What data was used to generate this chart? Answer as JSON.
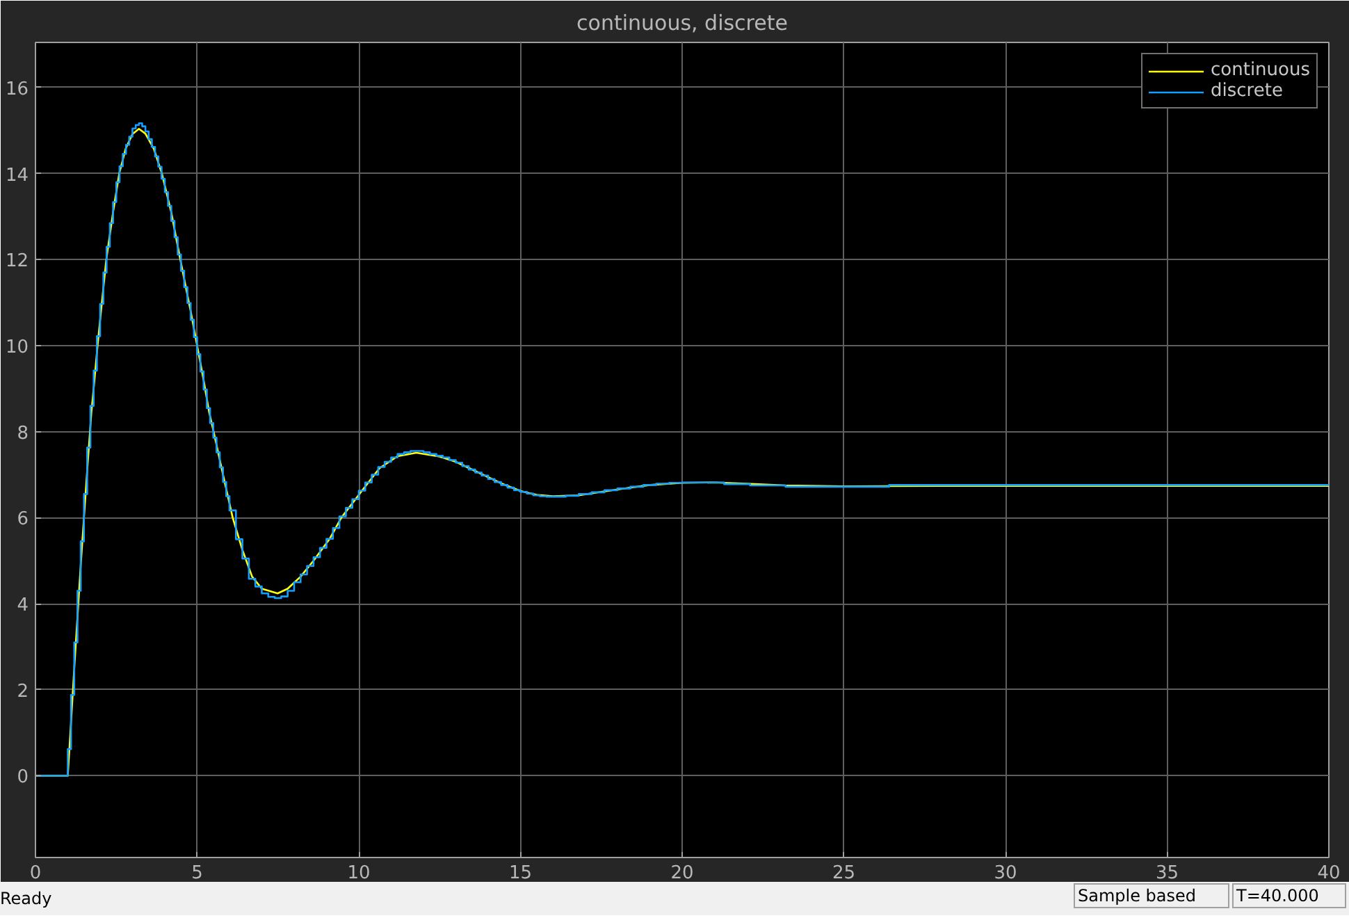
{
  "chart_data": {
    "type": "line",
    "title": "continuous, discrete",
    "xlim": [
      0,
      40
    ],
    "xticks": [
      0,
      5,
      10,
      15,
      20,
      25,
      30,
      35,
      40
    ],
    "ylim": [
      -1.9,
      17.05
    ],
    "yticks": [
      0,
      2,
      4,
      6,
      8,
      10,
      12,
      14,
      16
    ],
    "grid": true,
    "legend": "top right",
    "series": [
      {
        "name": "continuous",
        "color": "#ffff11",
        "x": [
          0,
          1.0,
          1.2,
          1.4,
          1.6,
          1.73,
          1.8,
          1.92,
          2.0,
          2.19,
          2.4,
          2.59,
          2.79,
          3.0,
          3.2,
          3.4,
          3.66,
          3.91,
          4.2,
          4.48,
          4.8,
          5.0,
          5.2,
          5.37,
          5.51,
          5.8,
          6.1,
          6.4,
          6.7,
          7.0,
          7.49,
          7.8,
          8.2,
          8.6,
          9.1,
          9.46,
          10.07,
          10.64,
          11.2,
          11.78,
          12.5,
          13.0,
          13.7,
          14.4,
          15.0,
          15.5,
          16.0,
          16.8,
          17.5,
          18.3,
          19.0,
          20.0,
          21.0,
          22.0,
          23.2,
          25.0,
          28.0,
          40.0
        ],
        "values": [
          0,
          0,
          2.5,
          4.9,
          7.1,
          8.46,
          9.0,
          10.0,
          10.6,
          12.0,
          13.1,
          14.0,
          14.58,
          14.92,
          15.04,
          14.93,
          14.58,
          14.0,
          13.1,
          12.0,
          10.8,
          10.0,
          9.2,
          8.46,
          8.0,
          7.0,
          6.0,
          5.25,
          4.63,
          4.35,
          4.24,
          4.35,
          4.63,
          5.0,
          5.51,
          6.0,
          6.6,
          7.15,
          7.43,
          7.51,
          7.42,
          7.3,
          7.05,
          6.8,
          6.62,
          6.53,
          6.5,
          6.52,
          6.6,
          6.69,
          6.76,
          6.81,
          6.82,
          6.79,
          6.75,
          6.73,
          6.74,
          6.74
        ]
      },
      {
        "name": "discrete",
        "color": "#129fff",
        "type": "step",
        "x": [
          0,
          1.0,
          1.1,
          1.2,
          1.3,
          1.4,
          1.5,
          1.6,
          1.7,
          1.8,
          1.9,
          2.0,
          2.1,
          2.2,
          2.3,
          2.4,
          2.5,
          2.6,
          2.7,
          2.8,
          2.9,
          3.0,
          3.1,
          3.2,
          3.3,
          3.4,
          3.5,
          3.6,
          3.7,
          3.8,
          3.9,
          4.0,
          4.1,
          4.2,
          4.3,
          4.4,
          4.5,
          4.6,
          4.7,
          4.8,
          4.9,
          5.0,
          5.1,
          5.2,
          5.3,
          5.4,
          5.5,
          5.6,
          5.7,
          5.8,
          5.9,
          6.0,
          6.2,
          6.4,
          6.6,
          6.8,
          7.0,
          7.2,
          7.4,
          7.6,
          7.8,
          8.0,
          8.2,
          8.4,
          8.6,
          8.8,
          9.0,
          9.2,
          9.4,
          9.6,
          9.8,
          10.0,
          10.2,
          10.4,
          10.6,
          10.8,
          11.0,
          11.2,
          11.4,
          11.6,
          11.8,
          12.0,
          12.2,
          12.4,
          12.6,
          12.8,
          13.0,
          13.2,
          13.4,
          13.6,
          13.8,
          14.0,
          14.2,
          14.4,
          14.6,
          14.8,
          15.0,
          15.2,
          15.4,
          15.6,
          15.8,
          16.0,
          16.4,
          16.8,
          17.2,
          17.6,
          18.0,
          18.4,
          18.8,
          19.2,
          19.6,
          20.0,
          21.3,
          22.1,
          23.2,
          26.4,
          40.0
        ],
        "values": [
          0,
          0.62,
          1.88,
          3.1,
          4.3,
          5.45,
          6.55,
          7.63,
          8.6,
          9.42,
          10.22,
          10.97,
          11.7,
          12.3,
          12.85,
          13.34,
          13.8,
          14.17,
          14.46,
          14.67,
          14.86,
          15.05,
          15.13,
          15.17,
          15.1,
          14.98,
          14.8,
          14.62,
          14.4,
          14.16,
          13.88,
          13.57,
          13.25,
          12.9,
          12.52,
          12.12,
          11.74,
          11.36,
          10.99,
          10.6,
          10.2,
          9.8,
          9.4,
          8.98,
          8.55,
          8.2,
          7.86,
          7.52,
          7.17,
          6.83,
          6.5,
          6.17,
          5.5,
          5.05,
          4.58,
          4.4,
          4.24,
          4.16,
          4.13,
          4.17,
          4.3,
          4.5,
          4.68,
          4.88,
          5.08,
          5.3,
          5.51,
          5.76,
          6.03,
          6.23,
          6.43,
          6.63,
          6.82,
          7.0,
          7.18,
          7.3,
          7.4,
          7.48,
          7.52,
          7.55,
          7.55,
          7.52,
          7.48,
          7.44,
          7.4,
          7.34,
          7.28,
          7.2,
          7.12,
          7.05,
          6.98,
          6.9,
          6.83,
          6.76,
          6.7,
          6.64,
          6.6,
          6.56,
          6.52,
          6.5,
          6.49,
          6.49,
          6.51,
          6.55,
          6.59,
          6.64,
          6.68,
          6.72,
          6.76,
          6.79,
          6.81,
          6.82,
          6.78,
          6.75,
          6.72,
          6.76,
          6.76
        ]
      }
    ],
    "annotations": [
      "Ready",
      "Sample based",
      "T=40.000"
    ]
  }
}
